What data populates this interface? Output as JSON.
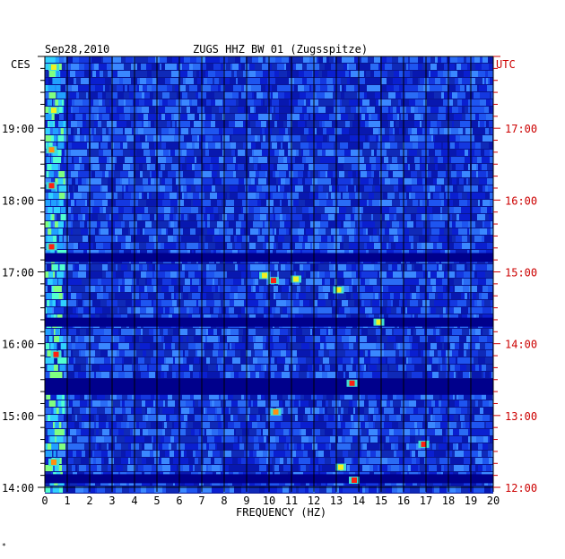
{
  "header": {
    "date": "Sep28,2010",
    "station": "ZUGS HHZ BW 01 (Zugsspitze)",
    "tz_left": "CES",
    "tz_right": "UTC",
    "corner_mark": "*"
  },
  "colors": {
    "background_blue": "#0a1fd0",
    "dark_band": "#00008c",
    "left_tick_color": "#000000",
    "right_tick_color": "#cc0000",
    "grid_color": "#000000"
  },
  "chart_data": {
    "type": "heatmap",
    "title": "ZUGS HHZ BW 01 (Zugsspitze)",
    "xlabel": "FREQUENCY (HZ)",
    "xlim": [
      0,
      20
    ],
    "x_ticks": [
      "0",
      "1",
      "2",
      "3",
      "4",
      "5",
      "6",
      "7",
      "8",
      "9",
      "10",
      "11",
      "12",
      "13",
      "14",
      "15",
      "16",
      "17",
      "18",
      "19",
      "20"
    ],
    "y_left_ticks": [
      "19:00",
      "18:00",
      "17:00",
      "16:00",
      "15:00",
      "14:00"
    ],
    "y_right_ticks": [
      "17:00",
      "16:00",
      "15:00",
      "14:00",
      "13:00",
      "12:00"
    ],
    "y_tick_hours_local": [
      19,
      18,
      17,
      16,
      15,
      14
    ],
    "y_range_hours_local": [
      14.0,
      20.0
    ],
    "dark_bands_hours_local": [
      16.3,
      15.45,
      15.35,
      14.12,
      17.2
    ],
    "hot_spots": [
      {
        "freq": 0.4,
        "hour": 19.85,
        "level": "yellow"
      },
      {
        "freq": 0.4,
        "hour": 19.25,
        "level": "yellow"
      },
      {
        "freq": 0.3,
        "hour": 18.7,
        "level": "orange"
      },
      {
        "freq": 0.3,
        "hour": 18.2,
        "level": "red"
      },
      {
        "freq": 0.3,
        "hour": 17.35,
        "level": "red"
      },
      {
        "freq": 0.5,
        "hour": 15.85,
        "level": "red"
      },
      {
        "freq": 0.4,
        "hour": 14.35,
        "level": "orange"
      },
      {
        "freq": 9.8,
        "hour": 16.95,
        "level": "yellow"
      },
      {
        "freq": 10.2,
        "hour": 16.88,
        "level": "red"
      },
      {
        "freq": 11.2,
        "hour": 16.9,
        "level": "yellow"
      },
      {
        "freq": 13.1,
        "hour": 16.75,
        "level": "yellow"
      },
      {
        "freq": 13.7,
        "hour": 15.45,
        "level": "red"
      },
      {
        "freq": 14.9,
        "hour": 16.3,
        "level": "yellow"
      },
      {
        "freq": 13.8,
        "hour": 14.1,
        "level": "red"
      },
      {
        "freq": 16.9,
        "hour": 14.6,
        "level": "red"
      },
      {
        "freq": 13.2,
        "hour": 14.28,
        "level": "yellow"
      },
      {
        "freq": 10.3,
        "hour": 15.05,
        "level": "orange"
      }
    ]
  }
}
